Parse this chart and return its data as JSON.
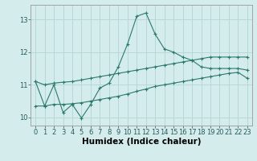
{
  "xlabel": "Humidex (Indice chaleur)",
  "ylabel": "",
  "bg_color": "#d4ecec",
  "line_color": "#2a7a6a",
  "grid_color": "#b8d8d8",
  "xlim": [
    -0.5,
    23.5
  ],
  "ylim": [
    9.75,
    13.45
  ],
  "yticks": [
    10,
    11,
    12,
    13
  ],
  "xticks": [
    0,
    1,
    2,
    3,
    4,
    5,
    6,
    7,
    8,
    9,
    10,
    11,
    12,
    13,
    14,
    15,
    16,
    17,
    18,
    19,
    20,
    21,
    22,
    23
  ],
  "series1_x": [
    0,
    1,
    2,
    3,
    4,
    5,
    6,
    7,
    8,
    9,
    10,
    11,
    12,
    13,
    14,
    15,
    16,
    17,
    18,
    19,
    20,
    21,
    22,
    23
  ],
  "series1_y": [
    11.1,
    10.35,
    11.0,
    10.15,
    10.4,
    9.98,
    10.4,
    10.9,
    11.05,
    11.55,
    12.25,
    13.1,
    13.2,
    12.55,
    12.1,
    12.0,
    11.85,
    11.75,
    11.55,
    11.5,
    11.5,
    11.5,
    11.5,
    11.45
  ],
  "series2_x": [
    0,
    1,
    2,
    3,
    4,
    5,
    6,
    7,
    8,
    9,
    10,
    11,
    12,
    13,
    14,
    15,
    16,
    17,
    18,
    19,
    20,
    21,
    22,
    23
  ],
  "series2_y": [
    11.1,
    11.0,
    11.05,
    11.08,
    11.1,
    11.15,
    11.2,
    11.25,
    11.3,
    11.35,
    11.4,
    11.45,
    11.5,
    11.55,
    11.6,
    11.65,
    11.7,
    11.75,
    11.8,
    11.85,
    11.85,
    11.85,
    11.85,
    11.85
  ],
  "series3_x": [
    0,
    1,
    2,
    3,
    4,
    5,
    6,
    7,
    8,
    9,
    10,
    11,
    12,
    13,
    14,
    15,
    16,
    17,
    18,
    19,
    20,
    21,
    22,
    23
  ],
  "series3_y": [
    10.35,
    10.35,
    10.4,
    10.4,
    10.42,
    10.45,
    10.5,
    10.55,
    10.6,
    10.65,
    10.72,
    10.8,
    10.87,
    10.95,
    11.0,
    11.05,
    11.1,
    11.15,
    11.2,
    11.25,
    11.3,
    11.35,
    11.38,
    11.2
  ],
  "marker": "+",
  "markersize": 3.5,
  "linewidth": 0.8,
  "xlabel_fontsize": 7.5,
  "tick_fontsize": 6.0
}
